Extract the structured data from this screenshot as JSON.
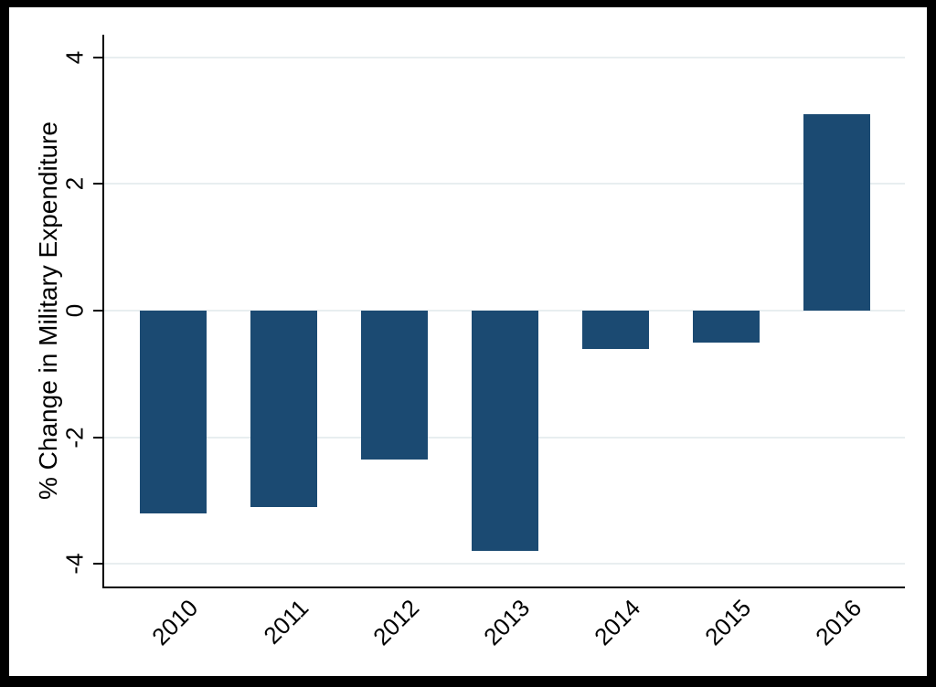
{
  "chart_data": {
    "type": "bar",
    "title": "",
    "xlabel": "",
    "ylabel": "% Change in Military Expenditure",
    "categories": [
      "2010",
      "2011",
      "2012",
      "2013",
      "2014",
      "2015",
      "2016"
    ],
    "values": [
      -3.2,
      -3.1,
      -2.35,
      -3.8,
      -0.6,
      -0.5,
      3.1
    ],
    "yticks": [
      {
        "value": 4,
        "label": "4"
      },
      {
        "value": 2,
        "label": "2"
      },
      {
        "value": 0,
        "label": "0"
      },
      {
        "value": -2,
        "label": "-2"
      },
      {
        "value": -4,
        "label": "-4"
      }
    ],
    "ylim": [
      -4.36,
      4.36
    ],
    "grid": "horizontal",
    "legend_position": "none",
    "x_tick_label_rotation_deg": 45,
    "y_tick_label_rotation_deg": 90,
    "colors": {
      "bar": "#1b4a72",
      "grid": "#e8eef0",
      "axis": "#000000",
      "text": "#000000",
      "background": "#ffffff",
      "frame": "#000000"
    }
  }
}
